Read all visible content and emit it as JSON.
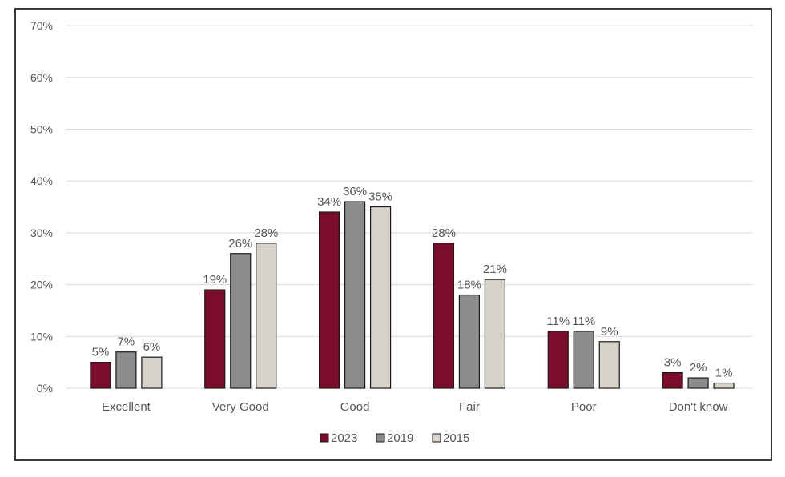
{
  "chart_data": {
    "type": "bar",
    "categories": [
      "Excellent",
      "Very Good",
      "Good",
      "Fair",
      "Poor",
      "Don't know"
    ],
    "series": [
      {
        "name": "2023",
        "values": [
          5,
          19,
          34,
          28,
          11,
          3
        ],
        "color": "#7b0c2c"
      },
      {
        "name": "2019",
        "values": [
          7,
          26,
          36,
          18,
          11,
          2
        ],
        "color": "#8c8c8c"
      },
      {
        "name": "2015",
        "values": [
          6,
          28,
          35,
          21,
          9,
          1
        ],
        "color": "#d8d3c8"
      }
    ],
    "yticks": [
      "0%",
      "10%",
      "20%",
      "30%",
      "40%",
      "50%",
      "60%",
      "70%"
    ],
    "ylim": [
      0,
      70
    ],
    "value_suffix": "%",
    "grid": true,
    "legend_position": "bottom"
  }
}
